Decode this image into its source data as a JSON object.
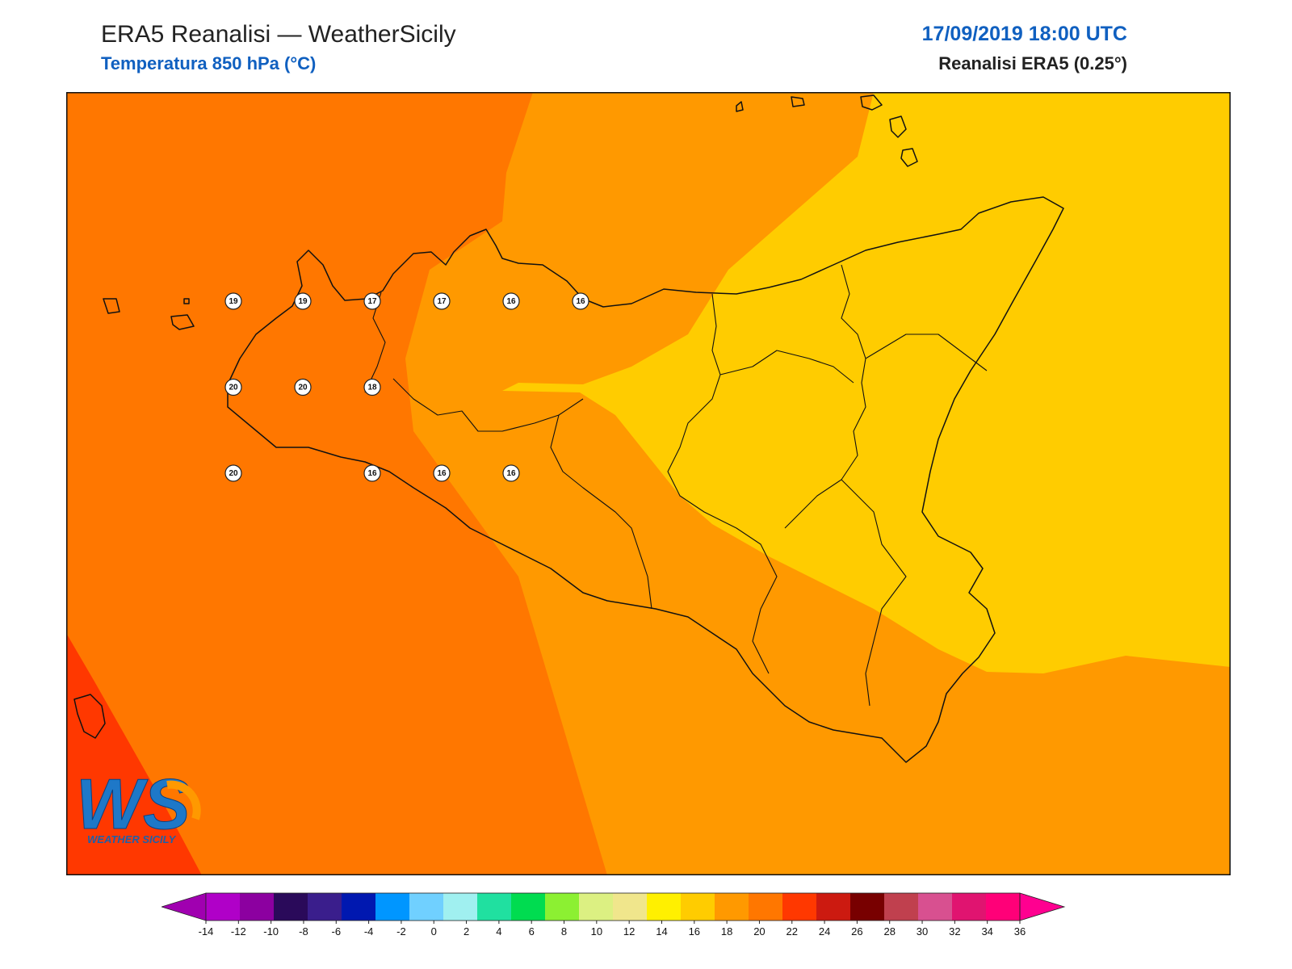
{
  "header": {
    "title": "ERA5 Reanalisi — WeatherSicily",
    "subtitle": "Temperatura 850 hPa (°C)",
    "datetime": "17/09/2019 18:00 UTC",
    "source": "Reanalisi ERA5 (0.25°)"
  },
  "logo": {
    "letters": "WS",
    "text": "WEATHER SICILY"
  },
  "colors": {
    "t14_16": "#ffcc00",
    "t16_18": "#ff9900",
    "t18_20": "#ff7700",
    "t20_22": "#ff3800",
    "title_blue": "#1060c0"
  },
  "stations": [
    {
      "lon": 13.0,
      "lat": 38.0,
      "value": "20"
    },
    {
      "lon": 12.5,
      "lat": 38.0,
      "value": "20"
    },
    {
      "lon": 12.5,
      "lat": 37.5,
      "value": "20"
    },
    {
      "lon": 13.5,
      "lat": 38.0,
      "value": "18"
    },
    {
      "lon": 12.5,
      "lat": 38.5,
      "value": "19"
    },
    {
      "lon": 13.0,
      "lat": 38.5,
      "value": "19"
    },
    {
      "lon": 13.5,
      "lat": 38.5,
      "value": "17"
    },
    {
      "lon": 14.0,
      "lat": 38.5,
      "value": "17"
    },
    {
      "lon": 14.5,
      "lat": 38.5,
      "value": "16"
    },
    {
      "lon": 15.0,
      "lat": 38.5,
      "value": "16"
    },
    {
      "lon": 13.5,
      "lat": 37.5,
      "value": "16"
    },
    {
      "lon": 14.0,
      "lat": 37.5,
      "value": "16"
    },
    {
      "lon": 14.5,
      "lat": 37.5,
      "value": "16"
    }
  ],
  "colorbar": {
    "ticks": [
      "-14",
      "-12",
      "-10",
      "-8",
      "-6",
      "-4",
      "-2",
      "0",
      "2",
      "4",
      "6",
      "8",
      "10",
      "12",
      "14",
      "16",
      "18",
      "20",
      "22",
      "24",
      "26",
      "28",
      "30",
      "32",
      "34",
      "36"
    ],
    "colors": [
      "#b000c8",
      "#8c00a0",
      "#2a0a5a",
      "#3a1e8c",
      "#0018b0",
      "#0096ff",
      "#70d0ff",
      "#a0f0f0",
      "#20e0a0",
      "#00dc50",
      "#8cf032",
      "#dcf082",
      "#f0e68c",
      "#fff000",
      "#ffcc00",
      "#ff9900",
      "#ff7700",
      "#ff3800",
      "#cc1a10",
      "#780000",
      "#c0404e",
      "#d85090",
      "#e01470",
      "#ff0078"
    ],
    "under_color": "#a000b0",
    "over_color": "#ff0090"
  }
}
